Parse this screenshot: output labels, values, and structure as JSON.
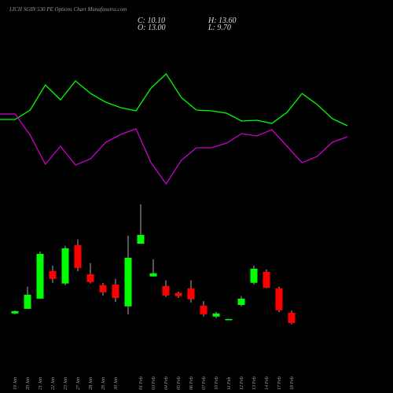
{
  "title": "LICH SGIN 530 PE Options Chart Munafasutra.com",
  "ohlc": {
    "close": "C: 10.10",
    "high": "H: 13.60",
    "open": "O: 13.00",
    "low": "L: 9.70"
  },
  "chart_data": [
    {
      "type": "line",
      "x": [
        0,
        1,
        2,
        3,
        4,
        5,
        6,
        7,
        8,
        9,
        10,
        11,
        12,
        13,
        14,
        15,
        16,
        17,
        18,
        19,
        20,
        21,
        22,
        23
      ],
      "xlim": [
        0,
        23
      ],
      "ylim": [
        0,
        250
      ],
      "series": [
        {
          "color": "#00ff00",
          "values": [
            98,
            98,
            110,
            142,
            123,
            147,
            131,
            120,
            113,
            109,
            138,
            156,
            126,
            110,
            109,
            106,
            96,
            97,
            93,
            107,
            131,
            117,
            99,
            90
          ]
        },
        {
          "color": "#cc00cc",
          "values": [
            105,
            105,
            78,
            41,
            64,
            40,
            48,
            69,
            79,
            86,
            43,
            16,
            46,
            62,
            62,
            68,
            80,
            77,
            85,
            64,
            43,
            51,
            69,
            76
          ]
        }
      ]
    },
    {
      "type": "candlestick",
      "categories": [
        "19 Jan",
        "20 Jan",
        "21 Jan",
        "22 Jan",
        "23 Jan",
        "27 Jan",
        "28 Jan",
        "29 Jan",
        "30 Jan",
        null,
        "01 Feb",
        "03 Feb",
        "04 Feb",
        "05 Feb",
        "06 Feb",
        "07 Feb",
        "10 Feb",
        "11 Feb",
        "12 Feb",
        "13 Feb",
        "14 Feb",
        "17 Feb",
        "18 Feb"
      ],
      "open": [
        12.78,
        14.1,
        17.0,
        24.8,
        21.3,
        32.2,
        23.9,
        20.8,
        21.0,
        14.8,
        32.6,
        23.3,
        20.6,
        18.6,
        19.9,
        15.0,
        11.9,
        11.0,
        15.2,
        21.5,
        24.6,
        19.9,
        13.0
      ],
      "high": [
        13.67,
        20.4,
        30.4,
        26.4,
        32.0,
        33.8,
        27.1,
        21.5,
        22.6,
        34.9,
        43.8,
        28.2,
        22.2,
        19.0,
        22.2,
        16.3,
        13.2,
        11.3,
        17.7,
        26.4,
        25.3,
        20.4,
        13.6
      ],
      "low": [
        12.55,
        14.1,
        17.0,
        21.5,
        20.8,
        24.8,
        21.3,
        17.9,
        16.1,
        12.55,
        32.6,
        23.3,
        17.5,
        17.2,
        15.9,
        11.9,
        11.4,
        11.0,
        14.8,
        21.0,
        19.9,
        13.2,
        9.7
      ],
      "close": [
        13.45,
        18.1,
        29.7,
        22.6,
        31.3,
        25.7,
        21.7,
        18.8,
        17.2,
        28.6,
        35.1,
        24.2,
        17.9,
        17.7,
        16.8,
        12.55,
        12.8,
        11.2,
        17.0,
        25.5,
        20.1,
        13.7,
        10.1
      ],
      "up_color": "#00ff00",
      "down_color": "#ff0000",
      "ylim": [
        -9.8,
        101.8
      ]
    }
  ]
}
